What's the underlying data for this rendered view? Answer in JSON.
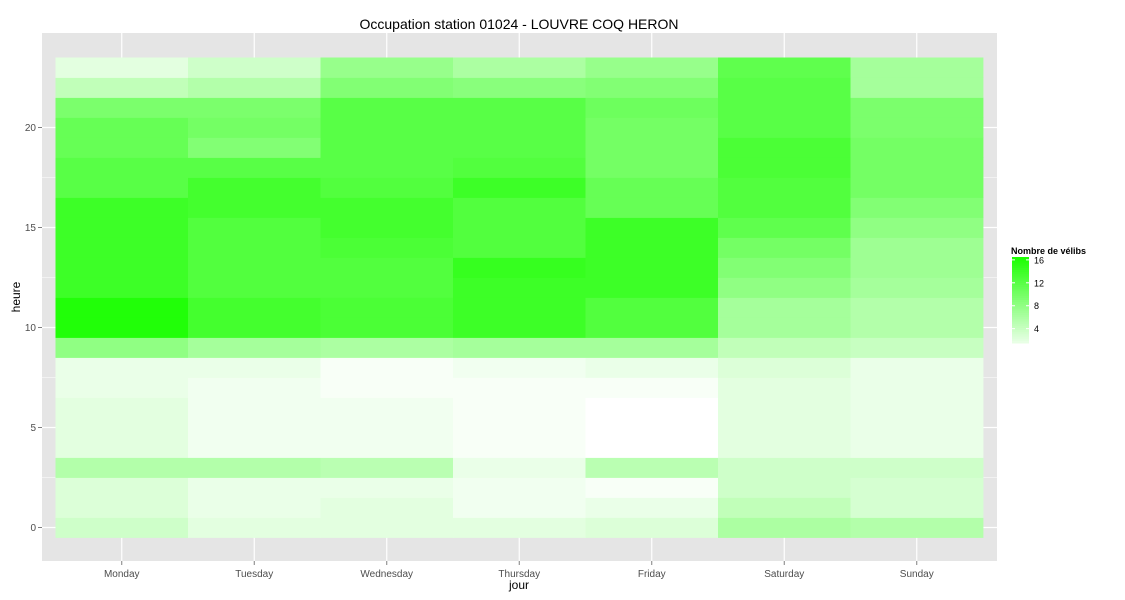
{
  "chart_data": {
    "type": "heatmap",
    "title": "Occupation station 01024 - LOUVRE COQ HERON",
    "xlabel": "jour",
    "ylabel": "heure",
    "x_categories": [
      "Monday",
      "Tuesday",
      "Wednesday",
      "Thursday",
      "Friday",
      "Saturday",
      "Sunday"
    ],
    "y_hours": [
      0,
      1,
      2,
      3,
      4,
      5,
      6,
      7,
      8,
      9,
      10,
      11,
      12,
      13,
      14,
      15,
      16,
      17,
      18,
      19,
      20,
      21,
      22,
      23
    ],
    "ylim": [
      -0.5,
      23.5
    ],
    "y_ticks": [
      0,
      5,
      10,
      15,
      20
    ],
    "values_by_day": [
      [
        3.5,
        2.5,
        2.5,
        5.5,
        2.0,
        2.0,
        2.0,
        1.5,
        1.5,
        8.0,
        16.0,
        16.0,
        14.0,
        14.0,
        14.0,
        14.0,
        14.0,
        12.0,
        12.0,
        11.0,
        11.0,
        9.5,
        4.5,
        2.0
      ],
      [
        2.0,
        1.5,
        1.5,
        5.5,
        1.0,
        1.0,
        1.0,
        1.0,
        1.5,
        6.5,
        13.5,
        13.5,
        12.5,
        12.5,
        12.5,
        12.5,
        13.5,
        13.5,
        12.0,
        9.0,
        10.0,
        9.5,
        5.5,
        3.5
      ],
      [
        2.0,
        2.0,
        1.5,
        5.0,
        1.0,
        1.0,
        1.0,
        0.5,
        0.5,
        6.0,
        13.0,
        13.0,
        12.5,
        12.5,
        13.0,
        13.5,
        13.5,
        12.5,
        12.0,
        12.0,
        12.0,
        12.0,
        9.0,
        7.5
      ],
      [
        2.0,
        1.0,
        1.0,
        1.5,
        0.5,
        0.5,
        0.5,
        0.5,
        1.0,
        6.5,
        14.0,
        14.0,
        14.0,
        14.5,
        12.5,
        12.5,
        12.5,
        14.0,
        12.5,
        12.0,
        12.0,
        12.0,
        8.5,
        6.0
      ],
      [
        2.5,
        1.5,
        0.5,
        5.0,
        0.0,
        0.0,
        0.0,
        0.5,
        1.5,
        6.5,
        12.5,
        12.5,
        14.0,
        14.0,
        14.0,
        14.0,
        11.0,
        11.0,
        10.0,
        10.0,
        10.0,
        10.5,
        9.0,
        7.5
      ],
      [
        6.0,
        4.5,
        3.5,
        3.5,
        2.0,
        2.0,
        2.0,
        2.0,
        2.5,
        4.5,
        6.5,
        6.5,
        8.0,
        9.0,
        10.0,
        11.5,
        12.5,
        12.5,
        13.0,
        13.0,
        12.0,
        12.0,
        12.0,
        11.5
      ],
      [
        5.5,
        3.0,
        3.0,
        3.5,
        1.5,
        1.5,
        1.5,
        1.5,
        1.5,
        4.0,
        5.5,
        5.5,
        6.5,
        7.0,
        7.0,
        8.0,
        9.0,
        10.0,
        10.0,
        10.0,
        9.5,
        9.5,
        6.5,
        6.5
      ]
    ],
    "color_scale": {
      "low": "#ffffff",
      "high": "#1aff00",
      "min": 0,
      "max": 16.5
    },
    "legend": {
      "title": "Nombre de vélibs",
      "labels": [
        "16",
        "12",
        "8",
        "4"
      ],
      "values": [
        16,
        12,
        8,
        4
      ],
      "position": "right"
    },
    "grid": true,
    "panel_background": "#e5e5e5",
    "grid_color": "#ffffff"
  }
}
